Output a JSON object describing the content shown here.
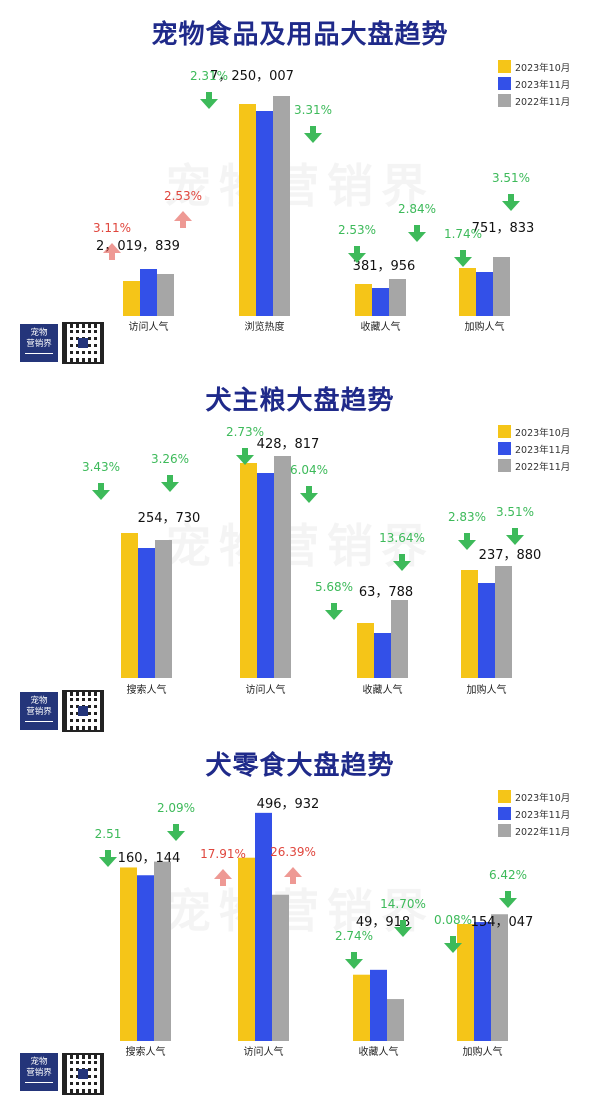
{
  "colors": {
    "oct2023": "#F5C518",
    "nov2023": "#3350E8",
    "nov2022": "#A6A6A6",
    "up": "#E0463D",
    "down": "#3DBA5A",
    "title": "#1F2A8A"
  },
  "legend": [
    "2023年10月",
    "2023年11月",
    "2022年11月"
  ],
  "watermark": "宠物营销界",
  "logo_text": [
    "宠物",
    "营销界"
  ],
  "chart_data": [
    {
      "type": "bar",
      "title": "宠物食品及用品大盘趋势",
      "categories": [
        "访问人气",
        "浏览热度",
        "收藏人气",
        "加购人气"
      ],
      "series": [
        {
          "name": "2023年10月",
          "values": [
            35,
            212,
            32,
            48
          ]
        },
        {
          "name": "2023年11月",
          "values": [
            47,
            205,
            28,
            44
          ]
        },
        {
          "name": "2022年11月",
          "values": [
            42,
            220,
            37,
            59
          ]
        }
      ],
      "ymax": 230,
      "value_labels": [
        "2，019，839",
        "7，250，007",
        "381，956",
        "751，833"
      ],
      "changes": [
        {
          "text": "3.11%",
          "dir": "up"
        },
        {
          "text": "2.53%",
          "dir": "up"
        },
        {
          "text": "2.31%",
          "dir": "down"
        },
        {
          "text": "3.31%",
          "dir": "down"
        },
        {
          "text": "2.53%",
          "dir": "down"
        },
        {
          "text": "2.84%",
          "dir": "down"
        },
        {
          "text": "1.74%",
          "dir": "down"
        },
        {
          "text": "3.51%",
          "dir": "down"
        }
      ]
    },
    {
      "type": "bar",
      "title": "犬主粮大盘趋势",
      "categories": [
        "搜索人气",
        "访问人气",
        "收藏人气",
        "加购人气"
      ],
      "series": [
        {
          "name": "2023年10月",
          "values": [
            145,
            215,
            55,
            108
          ]
        },
        {
          "name": "2023年11月",
          "values": [
            130,
            205,
            45,
            95
          ]
        },
        {
          "name": "2022年11月",
          "values": [
            138,
            222,
            78,
            112
          ]
        }
      ],
      "ymax": 230,
      "value_labels": [
        "254，730",
        "428，817",
        "63，788",
        "237，880"
      ],
      "changes": [
        {
          "text": "3.43%",
          "dir": "down"
        },
        {
          "text": "3.26%",
          "dir": "down"
        },
        {
          "text": "2.73%",
          "dir": "down"
        },
        {
          "text": "6.04%",
          "dir": "down"
        },
        {
          "text": "5.68%",
          "dir": "down"
        },
        {
          "text": "13.64%",
          "dir": "down"
        },
        {
          "text": "2.83%",
          "dir": "down"
        },
        {
          "text": "3.51%",
          "dir": "down"
        }
      ]
    },
    {
      "type": "bar",
      "title": "犬零食大盘趋势",
      "categories": [
        "搜索人气",
        "访问人气",
        "收藏人气",
        "加购人气"
      ],
      "series": [
        {
          "name": "2023年10月",
          "values": [
            178,
            188,
            68,
            120
          ]
        },
        {
          "name": "2023年11月",
          "values": [
            170,
            234,
            73,
            122
          ]
        },
        {
          "name": "2022年11月",
          "values": [
            184,
            150,
            43,
            130
          ]
        }
      ],
      "ymax": 240,
      "value_labels": [
        "160，144",
        "496，932",
        "49，918",
        "154，047"
      ],
      "changes": [
        {
          "text": "2.51",
          "dir": "down"
        },
        {
          "text": "2.09%",
          "dir": "down"
        },
        {
          "text": "17.91%",
          "dir": "up"
        },
        {
          "text": "26.39%",
          "dir": "up"
        },
        {
          "text": "2.74%",
          "dir": "down"
        },
        {
          "text": "14.70%",
          "dir": "down"
        },
        {
          "text": "0.08%",
          "dir": "down"
        },
        {
          "text": "6.42%",
          "dir": "down"
        }
      ]
    }
  ]
}
